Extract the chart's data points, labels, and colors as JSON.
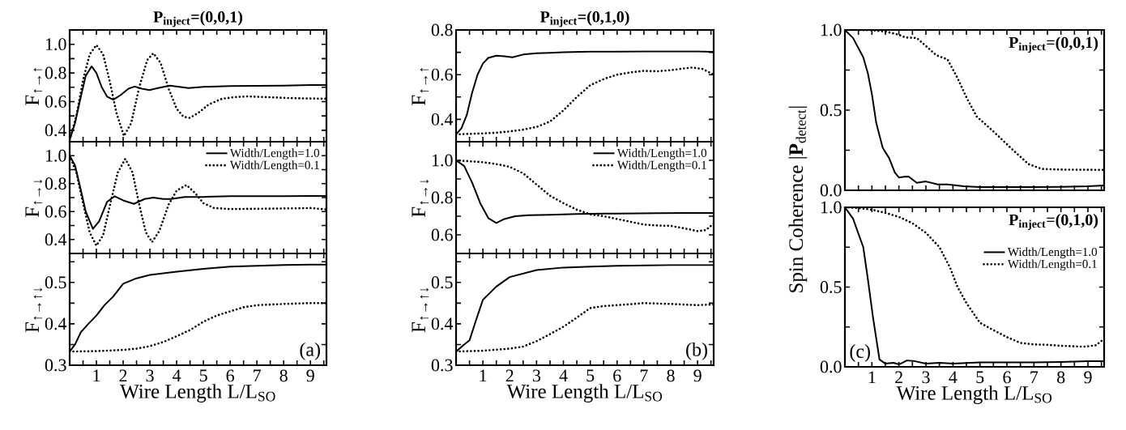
{
  "chart_data": [
    {
      "type": "line",
      "title": "P$_{inject}$=(0,0,1)",
      "ylabel": "F$_{↑→↑}$",
      "xlim": [
        0,
        9.6
      ],
      "ylim": [
        0.32,
        1.1
      ],
      "tick_labels": "y",
      "xticks": [
        {
          "value": 0.5,
          "label": null
        },
        1,
        {
          "value": 1.5,
          "label": null
        },
        2,
        {
          "value": 2.5,
          "label": null
        },
        3,
        {
          "value": 3.5,
          "label": null
        },
        4,
        {
          "value": 4.5,
          "label": null
        },
        5,
        {
          "value": 5.5,
          "label": null
        },
        6,
        {
          "value": 6.5,
          "label": null
        },
        7,
        {
          "value": 7.5,
          "label": null
        },
        8,
        {
          "value": 8.5,
          "label": null
        },
        9,
        {
          "value": 9.5,
          "label": null
        }
      ],
      "yticks": [
        0.4,
        {
          "value": 0.5,
          "label": null
        },
        0.6,
        {
          "value": 0.7,
          "label": null
        },
        0.8,
        {
          "value": 0.9,
          "label": null
        },
        {
          "value": 1.0,
          "label": "1.0"
        }
      ],
      "series": [
        {
          "color": "#000000",
          "line_style": "solid",
          "x": [
            0,
            0.2,
            0.4,
            0.6,
            0.82,
            1.0,
            1.2,
            1.4,
            1.63,
            1.9,
            2.2,
            2.43,
            2.7,
            2.98,
            3.3,
            3.74,
            4.1,
            4.44,
            5,
            6,
            7,
            8,
            9,
            9.6
          ],
          "values": [
            0.333,
            0.45,
            0.62,
            0.78,
            0.846,
            0.8,
            0.7,
            0.635,
            0.613,
            0.645,
            0.69,
            0.705,
            0.69,
            0.68,
            0.695,
            0.712,
            0.703,
            0.695,
            0.703,
            0.708,
            0.71,
            0.712,
            0.715,
            0.715
          ]
        },
        {
          "color": "#000000",
          "line_style": "dotted",
          "x": [
            0,
            0.25,
            0.5,
            0.75,
            1.0,
            1.25,
            1.5,
            1.75,
            2.03,
            2.3,
            2.6,
            2.9,
            3.13,
            3.4,
            3.7,
            4.0,
            4.25,
            4.49,
            4.8,
            5.2,
            5.7,
            6.2,
            6.65,
            7.5,
            8.5,
            9.6
          ],
          "values": [
            0.333,
            0.5,
            0.75,
            0.93,
            0.995,
            0.93,
            0.74,
            0.52,
            0.36,
            0.45,
            0.7,
            0.89,
            0.937,
            0.87,
            0.69,
            0.55,
            0.495,
            0.486,
            0.52,
            0.58,
            0.62,
            0.632,
            0.636,
            0.63,
            0.623,
            0.62
          ]
        }
      ]
    },
    {
      "type": "line",
      "ylabel": "F$_{↑→↓}$",
      "xlim": [
        0,
        9.6
      ],
      "ylim": [
        0.3,
        1.1
      ],
      "tick_labels": "y",
      "legend": "top right",
      "xticks": [
        {
          "value": 0.5,
          "label": null
        },
        1,
        {
          "value": 1.5,
          "label": null
        },
        2,
        {
          "value": 2.5,
          "label": null
        },
        3,
        {
          "value": 3.5,
          "label": null
        },
        4,
        {
          "value": 4.5,
          "label": null
        },
        5,
        {
          "value": 5.5,
          "label": null
        },
        6,
        {
          "value": 6.5,
          "label": null
        },
        7,
        {
          "value": 7.5,
          "label": null
        },
        8,
        {
          "value": 8.5,
          "label": null
        },
        9,
        {
          "value": 9.5,
          "label": null
        }
      ],
      "yticks": [
        0.4,
        {
          "value": 0.5,
          "label": null
        },
        0.6,
        {
          "value": 0.7,
          "label": null
        },
        0.8,
        {
          "value": 0.9,
          "label": null
        },
        {
          "value": 1.0,
          "label": "1.0"
        }
      ],
      "series": [
        {
          "name": "Width/Length=1.0",
          "color": "#000000",
          "line_style": "solid",
          "x": [
            0,
            0.2,
            0.4,
            0.6,
            0.87,
            1.1,
            1.4,
            1.68,
            2.0,
            2.4,
            2.8,
            3.13,
            3.5,
            3.79,
            4.3,
            5,
            6,
            7,
            8,
            9,
            9.6
          ],
          "values": [
            1.0,
            0.93,
            0.77,
            0.6,
            0.476,
            0.53,
            0.67,
            0.71,
            0.68,
            0.655,
            0.69,
            0.7,
            0.69,
            0.69,
            0.705,
            0.705,
            0.71,
            0.71,
            0.71,
            0.712,
            0.712
          ]
        },
        {
          "name": "Width/Length=0.1",
          "color": "#000000",
          "line_style": "dotted",
          "x": [
            0,
            0.25,
            0.5,
            0.75,
            1.0,
            1.25,
            1.5,
            1.8,
            2.08,
            2.35,
            2.6,
            2.85,
            3.08,
            3.35,
            3.7,
            4.0,
            4.37,
            4.7,
            5.0,
            5.4,
            6,
            7,
            8,
            9,
            9.6
          ],
          "values": [
            1.0,
            0.88,
            0.66,
            0.45,
            0.356,
            0.43,
            0.64,
            0.88,
            0.977,
            0.88,
            0.65,
            0.45,
            0.381,
            0.46,
            0.65,
            0.75,
            0.79,
            0.73,
            0.66,
            0.625,
            0.618,
            0.62,
            0.622,
            0.625,
            0.615
          ]
        }
      ]
    },
    {
      "type": "line",
      "ylabel": "F$_{↑→↑↓}$",
      "xlabel": "Wire Length L/L$_{SO}$",
      "xlim": [
        0,
        9.6
      ],
      "ylim": [
        0.3,
        0.57
      ],
      "annotations": [
        "(a)"
      ],
      "xticks": [
        {
          "value": 0.5,
          "label": null
        },
        1,
        {
          "value": 1.5,
          "label": null
        },
        2,
        {
          "value": 2.5,
          "label": null
        },
        3,
        {
          "value": 3.5,
          "label": null
        },
        4,
        {
          "value": 4.5,
          "label": null
        },
        5,
        {
          "value": 5.5,
          "label": null
        },
        6,
        {
          "value": 6.5,
          "label": null
        },
        7,
        {
          "value": 7.5,
          "label": null
        },
        8,
        {
          "value": 8.5,
          "label": null
        },
        9,
        {
          "value": 9.5,
          "label": null
        }
      ],
      "yticks": [
        0.3,
        {
          "value": 0.35,
          "label": null
        },
        0.4,
        {
          "value": 0.45,
          "label": null
        },
        0.5,
        {
          "value": 0.55,
          "label": null
        }
      ],
      "series": [
        {
          "color": "#000000",
          "line_style": "solid",
          "x": [
            0,
            0.2,
            0.42,
            0.7,
            1.0,
            1.3,
            1.63,
            2.0,
            2.5,
            3,
            4,
            5,
            6,
            7,
            8,
            9,
            9.6
          ],
          "values": [
            0.333,
            0.35,
            0.38,
            0.4,
            0.42,
            0.445,
            0.466,
            0.497,
            0.51,
            0.518,
            0.526,
            0.533,
            0.538,
            0.54,
            0.542,
            0.543,
            0.543
          ]
        },
        {
          "color": "#000000",
          "line_style": "dotted",
          "x": [
            0,
            1,
            2,
            2.5,
            3,
            3.5,
            4,
            4.5,
            5,
            5.5,
            6,
            6.5,
            7,
            8,
            9,
            9.6
          ],
          "values": [
            0.333,
            0.334,
            0.337,
            0.34,
            0.346,
            0.356,
            0.37,
            0.385,
            0.405,
            0.42,
            0.43,
            0.44,
            0.445,
            0.448,
            0.45,
            0.45
          ]
        }
      ]
    },
    {
      "type": "line",
      "title": "P$_{inject}$=(0,1,0)",
      "ylabel": "F$_{↑→↑}$",
      "xlim": [
        0,
        9.6
      ],
      "ylim": [
        0.3,
        0.8
      ],
      "tick_labels": "y",
      "xticks": [
        {
          "value": 0.5,
          "label": null
        },
        1,
        {
          "value": 1.5,
          "label": null
        },
        2,
        {
          "value": 2.5,
          "label": null
        },
        3,
        {
          "value": 3.5,
          "label": null
        },
        4,
        {
          "value": 4.5,
          "label": null
        },
        5,
        {
          "value": 5.5,
          "label": null
        },
        6,
        {
          "value": 6.5,
          "label": null
        },
        7,
        {
          "value": 7.5,
          "label": null
        },
        8,
        {
          "value": 8.5,
          "label": null
        },
        9,
        {
          "value": 9.5,
          "label": null
        }
      ],
      "yticks": [
        0.4,
        {
          "value": 0.5,
          "label": null
        },
        0.6,
        {
          "value": 0.7,
          "label": null
        },
        0.8
      ],
      "series": [
        {
          "color": "#000000",
          "line_style": "solid",
          "x": [
            0,
            0.2,
            0.4,
            0.6,
            0.8,
            1.0,
            1.2,
            1.5,
            1.8,
            2.1,
            2.5,
            3,
            3.5,
            4,
            5,
            6,
            7,
            8,
            9,
            9.6
          ],
          "values": [
            0.333,
            0.36,
            0.42,
            0.52,
            0.6,
            0.65,
            0.675,
            0.685,
            0.682,
            0.678,
            0.69,
            0.696,
            0.698,
            0.7,
            0.703,
            0.703,
            0.704,
            0.704,
            0.704,
            0.702
          ]
        },
        {
          "color": "#000000",
          "line_style": "dotted",
          "x": [
            0,
            0.5,
            1,
            1.5,
            2,
            2.5,
            3,
            3.5,
            4,
            4.5,
            5,
            5.5,
            6,
            6.5,
            7,
            7.5,
            8,
            8.5,
            8.8,
            9.2,
            9.6
          ],
          "values": [
            0.333,
            0.335,
            0.337,
            0.34,
            0.346,
            0.354,
            0.366,
            0.39,
            0.44,
            0.5,
            0.553,
            0.58,
            0.6,
            0.61,
            0.617,
            0.615,
            0.62,
            0.628,
            0.632,
            0.625,
            0.6
          ]
        }
      ]
    },
    {
      "type": "line",
      "ylabel": "F$_{↑→↓}$",
      "xlim": [
        0,
        9.6
      ],
      "ylim": [
        0.5,
        1.1
      ],
      "tick_labels": "y",
      "legend": "top right",
      "xticks": [
        {
          "value": 0.5,
          "label": null
        },
        1,
        {
          "value": 1.5,
          "label": null
        },
        2,
        {
          "value": 2.5,
          "label": null
        },
        3,
        {
          "value": 3.5,
          "label": null
        },
        4,
        {
          "value": 4.5,
          "label": null
        },
        5,
        {
          "value": 5.5,
          "label": null
        },
        6,
        {
          "value": 6.5,
          "label": null
        },
        7,
        {
          "value": 7.5,
          "label": null
        },
        8,
        {
          "value": 8.5,
          "label": null
        },
        9,
        {
          "value": 9.5,
          "label": null
        }
      ],
      "yticks": [
        0.6,
        {
          "value": 0.7,
          "label": null
        },
        0.8,
        {
          "value": 0.9,
          "label": null
        },
        {
          "value": 1.0,
          "label": "1.0"
        }
      ],
      "series": [
        {
          "name": "Width/Length=1.0",
          "color": "#000000",
          "line_style": "solid",
          "x": [
            0,
            0.3,
            0.6,
            0.9,
            1.2,
            1.5,
            1.8,
            2.2,
            2.7,
            3.5,
            4.5,
            5.5,
            6.5,
            7.5,
            8.5,
            9.6
          ],
          "values": [
            1.0,
            0.97,
            0.88,
            0.77,
            0.69,
            0.664,
            0.685,
            0.7,
            0.705,
            0.708,
            0.712,
            0.714,
            0.715,
            0.716,
            0.717,
            0.717
          ]
        },
        {
          "name": "Width/Length=0.1",
          "color": "#000000",
          "line_style": "dotted",
          "x": [
            0,
            1,
            1.5,
            2,
            2.5,
            3,
            3.5,
            4,
            4.5,
            5,
            5.5,
            6,
            6.5,
            7,
            7.5,
            8,
            8.5,
            9,
            9.3,
            9.6
          ],
          "values": [
            1.0,
            0.99,
            0.98,
            0.965,
            0.93,
            0.87,
            0.81,
            0.77,
            0.735,
            0.71,
            0.7,
            0.685,
            0.67,
            0.655,
            0.65,
            0.648,
            0.635,
            0.62,
            0.625,
            0.66
          ]
        }
      ]
    },
    {
      "type": "line",
      "ylabel": "F$_{↑→↑↓}$",
      "xlabel": "Wire Length L/L$_{SO}$",
      "xlim": [
        0,
        9.6
      ],
      "ylim": [
        0.3,
        0.57
      ],
      "annotations": [
        "(b)"
      ],
      "xticks": [
        {
          "value": 0.5,
          "label": null
        },
        1,
        {
          "value": 1.5,
          "label": null
        },
        2,
        {
          "value": 2.5,
          "label": null
        },
        3,
        {
          "value": 3.5,
          "label": null
        },
        4,
        {
          "value": 4.5,
          "label": null
        },
        5,
        {
          "value": 5.5,
          "label": null
        },
        6,
        {
          "value": 6.5,
          "label": null
        },
        7,
        {
          "value": 7.5,
          "label": null
        },
        8,
        {
          "value": 8.5,
          "label": null
        },
        9,
        {
          "value": 9.5,
          "label": null
        }
      ],
      "yticks": [
        0.3,
        {
          "value": 0.35,
          "label": null
        },
        0.4,
        {
          "value": 0.45,
          "label": null
        },
        0.5,
        {
          "value": 0.55,
          "label": null
        }
      ],
      "series": [
        {
          "color": "#000000",
          "line_style": "solid",
          "x": [
            0,
            0.3,
            0.5,
            0.75,
            1,
            1.5,
            2,
            3,
            4,
            5,
            6,
            7,
            8,
            9,
            9.6
          ],
          "values": [
            0.333,
            0.35,
            0.36,
            0.41,
            0.458,
            0.49,
            0.513,
            0.53,
            0.536,
            0.538,
            0.54,
            0.541,
            0.542,
            0.542,
            0.542
          ]
        },
        {
          "color": "#000000",
          "line_style": "dotted",
          "x": [
            0,
            1,
            2,
            2.5,
            3,
            3.5,
            4,
            4.5,
            5,
            5.5,
            6,
            7,
            8,
            9,
            9.6
          ],
          "values": [
            0.333,
            0.335,
            0.34,
            0.345,
            0.358,
            0.375,
            0.393,
            0.415,
            0.438,
            0.443,
            0.445,
            0.45,
            0.448,
            0.445,
            0.447
          ]
        }
      ]
    },
    {
      "type": "line",
      "xlim": [
        0,
        9.6
      ],
      "ylim": [
        0,
        1
      ],
      "tick_labels": "y",
      "annotations": [
        "P$_{inject}$=(0,0,1)"
      ],
      "xticks": [
        {
          "value": 0.5,
          "label": null
        },
        1,
        {
          "value": 1.5,
          "label": null
        },
        2,
        {
          "value": 2.5,
          "label": null
        },
        3,
        {
          "value": 3.5,
          "label": null
        },
        4,
        {
          "value": 4.5,
          "label": null
        },
        5,
        {
          "value": 5.5,
          "label": null
        },
        6,
        {
          "value": 6.5,
          "label": null
        },
        7,
        {
          "value": 7.5,
          "label": null
        },
        8,
        {
          "value": 8.5,
          "label": null
        },
        9,
        {
          "value": 9.5,
          "label": null
        }
      ],
      "yticks": [
        {
          "value": 0,
          "label": "0.0"
        },
        {
          "value": 0.25,
          "label": null
        },
        0.5,
        {
          "value": 0.75,
          "label": null
        },
        {
          "value": 1,
          "label": "1.0"
        }
      ],
      "series": [
        {
          "color": "#000000",
          "line_style": "solid",
          "x": [
            0,
            0.3,
            0.68,
            0.85,
            1.0,
            1.16,
            1.4,
            1.64,
            1.85,
            2.0,
            2.2,
            2.36,
            2.66,
            3.0,
            3.44,
            3.8,
            4.4,
            5,
            6,
            7,
            8,
            9,
            9.6
          ],
          "values": [
            1.0,
            0.95,
            0.83,
            0.73,
            0.6,
            0.42,
            0.265,
            0.2,
            0.11,
            0.08,
            0.085,
            0.086,
            0.047,
            0.055,
            0.037,
            0.037,
            0.025,
            0.02,
            0.02,
            0.02,
            0.022,
            0.025,
            0.03
          ]
        },
        {
          "color": "#000000",
          "line_style": "dotted",
          "x": [
            0,
            0.5,
            1.0,
            1.5,
            2.0,
            2.24,
            2.66,
            3.08,
            3.38,
            3.8,
            4.17,
            4.5,
            4.88,
            5.5,
            6.2,
            6.8,
            7.3,
            8,
            9,
            9.6
          ],
          "values": [
            1.0,
            1.0,
            0.998,
            0.99,
            0.97,
            0.953,
            0.95,
            0.888,
            0.843,
            0.816,
            0.7,
            0.58,
            0.46,
            0.367,
            0.255,
            0.163,
            0.133,
            0.129,
            0.128,
            0.127
          ]
        }
      ]
    },
    {
      "type": "line",
      "ylabel": "Spin Coherence |**P**$_{detect}$|",
      "xlabel": "Wire Length L/L$_{SO}$",
      "xlim": [
        0,
        9.6
      ],
      "ylim": [
        0,
        1
      ],
      "legend": "top right",
      "annotations": [
        "P$_{inject}$=(0,1,0)",
        "(c)"
      ],
      "xticks": [
        {
          "value": 0.5,
          "label": null
        },
        1,
        {
          "value": 1.5,
          "label": null
        },
        2,
        {
          "value": 2.5,
          "label": null
        },
        3,
        {
          "value": 3.5,
          "label": null
        },
        4,
        {
          "value": 4.5,
          "label": null
        },
        5,
        {
          "value": 5.5,
          "label": null
        },
        6,
        {
          "value": 6.5,
          "label": null
        },
        7,
        {
          "value": 7.5,
          "label": null
        },
        8,
        {
          "value": 8.5,
          "label": null
        },
        9,
        {
          "value": 9.5,
          "label": null
        }
      ],
      "yticks": [
        {
          "value": 0,
          "label": "0.0"
        },
        {
          "value": 0.25,
          "label": null
        },
        0.5,
        {
          "value": 0.75,
          "label": null
        },
        {
          "value": 1,
          "label": "1.0"
        }
      ],
      "series": [
        {
          "name": "Width/Length=1.0",
          "color": "#000000",
          "line_style": "solid",
          "x": [
            0,
            0.3,
            0.68,
            0.85,
            1.04,
            1.28,
            1.5,
            1.8,
            2.0,
            2.3,
            2.6,
            3,
            3.5,
            4,
            5,
            6,
            7,
            8,
            9,
            9.6
          ],
          "values": [
            1.0,
            0.93,
            0.75,
            0.55,
            0.31,
            0.046,
            0.02,
            0.025,
            0.015,
            0.04,
            0.035,
            0.02,
            0.025,
            0.02,
            0.028,
            0.028,
            0.028,
            0.03,
            0.035,
            0.035
          ]
        },
        {
          "name": "Width/Length=0.1",
          "color": "#000000",
          "line_style": "dotted",
          "x": [
            0,
            0.5,
            1,
            1.5,
            2,
            2.5,
            3,
            3.5,
            3.9,
            4.17,
            4.5,
            5,
            5.5,
            6,
            6.5,
            7.05,
            7.5,
            8,
            8.85,
            9.3,
            9.6
          ],
          "values": [
            1.0,
            0.995,
            0.985,
            0.965,
            0.94,
            0.9,
            0.84,
            0.75,
            0.62,
            0.5,
            0.4,
            0.276,
            0.23,
            0.186,
            0.15,
            0.14,
            0.138,
            0.132,
            0.126,
            0.135,
            0.176
          ]
        }
      ]
    }
  ]
}
